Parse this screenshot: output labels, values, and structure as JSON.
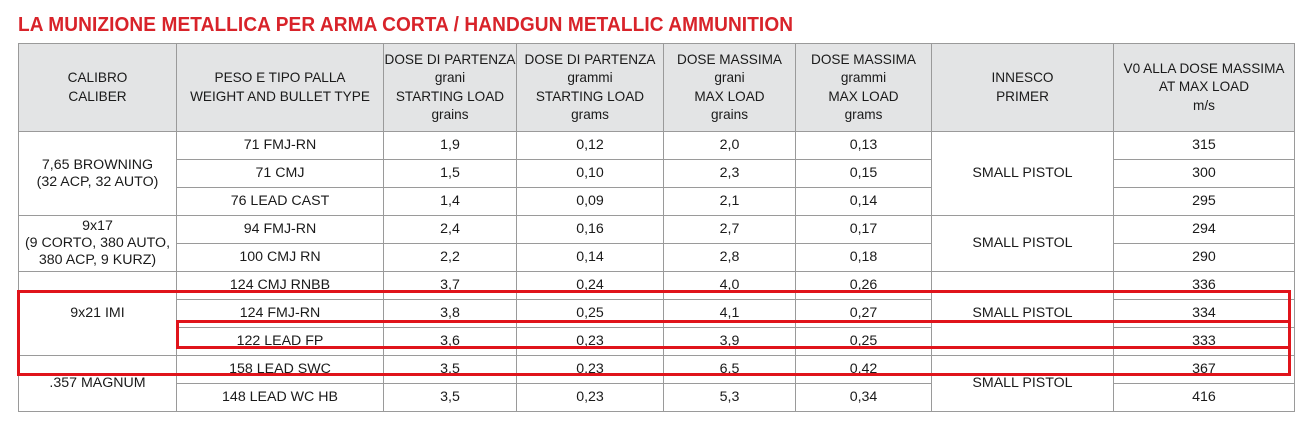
{
  "title": "LA MUNIZIONE METALLICA PER ARMA CORTA / HANDGUN METALLIC AMMUNITION",
  "headers": [
    [
      "CALIBRO",
      "CALIBER"
    ],
    [
      "PESO E TIPO PALLA",
      "WEIGHT AND BULLET TYPE"
    ],
    [
      "DOSE DI PARTENZA",
      "grani",
      "STARTING LOAD",
      "grains"
    ],
    [
      "DOSE DI PARTENZA",
      "grammi",
      "STARTING LOAD",
      "grams"
    ],
    [
      "DOSE MASSIMA",
      "grani",
      "MAX LOAD",
      "grains"
    ],
    [
      "DOSE MASSIMA",
      "grammi",
      "MAX LOAD",
      "grams"
    ],
    [
      "INNESCO",
      "PRIMER"
    ],
    [
      "V0 ALLA DOSE MASSIMA",
      "AT MAX LOAD",
      "m/s"
    ]
  ],
  "groups": [
    {
      "caliber": [
        "7,65 BROWNING",
        "(32 ACP, 32 AUTO)"
      ],
      "primer": "SMALL PISTOL",
      "rows": [
        {
          "bullet": "71 FMJ-RN",
          "start_gr": "1,9",
          "start_g": "0,12",
          "max_gr": "2,0",
          "max_g": "0,13",
          "v0": "315"
        },
        {
          "bullet": "71 CMJ",
          "start_gr": "1,5",
          "start_g": "0,10",
          "max_gr": "2,3",
          "max_g": "0,15",
          "v0": "300"
        },
        {
          "bullet": "76 LEAD CAST",
          "start_gr": "1,4",
          "start_g": "0,09",
          "max_gr": "2,1",
          "max_g": "0,14",
          "v0": "295"
        }
      ]
    },
    {
      "caliber": [
        "9x17",
        "(9 CORTO, 380 AUTO,",
        "380 ACP, 9 KURZ)"
      ],
      "primer": "SMALL PISTOL",
      "rows": [
        {
          "bullet": "94 FMJ-RN",
          "start_gr": "2,4",
          "start_g": "0,16",
          "max_gr": "2,7",
          "max_g": "0,17",
          "v0": "294"
        },
        {
          "bullet": "100 CMJ RN",
          "start_gr": "2,2",
          "start_g": "0,14",
          "max_gr": "2,8",
          "max_g": "0,18",
          "v0": "290"
        }
      ]
    },
    {
      "caliber": [
        "9x21 IMI"
      ],
      "primer": "SMALL PISTOL",
      "rows": [
        {
          "bullet": "124 CMJ RNBB",
          "start_gr": "3,7",
          "start_g": "0,24",
          "max_gr": "4,0",
          "max_g": "0,26",
          "v0": "336"
        },
        {
          "bullet": "124 FMJ-RN",
          "start_gr": "3,8",
          "start_g": "0,25",
          "max_gr": "4,1",
          "max_g": "0,27",
          "v0": "334"
        },
        {
          "bullet": "122 LEAD FP",
          "start_gr": "3,6",
          "start_g": "0,23",
          "max_gr": "3,9",
          "max_g": "0,25",
          "v0": "333"
        }
      ]
    },
    {
      "caliber": [
        ".357 MAGNUM"
      ],
      "primer": "SMALL PISTOL",
      "rows": [
        {
          "bullet": "158 LEAD SWC",
          "start_gr": "3,5",
          "start_g": "0,23",
          "max_gr": "6,5",
          "max_g": "0,42",
          "v0": "367"
        },
        {
          "bullet": "148 LEAD WC HB",
          "start_gr": "3,5",
          "start_g": "0,23",
          "max_gr": "5,3",
          "max_g": "0,34",
          "v0": "416"
        }
      ]
    }
  ],
  "colors": {
    "title": "#d8232a",
    "header_bg": "#e3e4e5",
    "highlight": "#e0141b"
  }
}
